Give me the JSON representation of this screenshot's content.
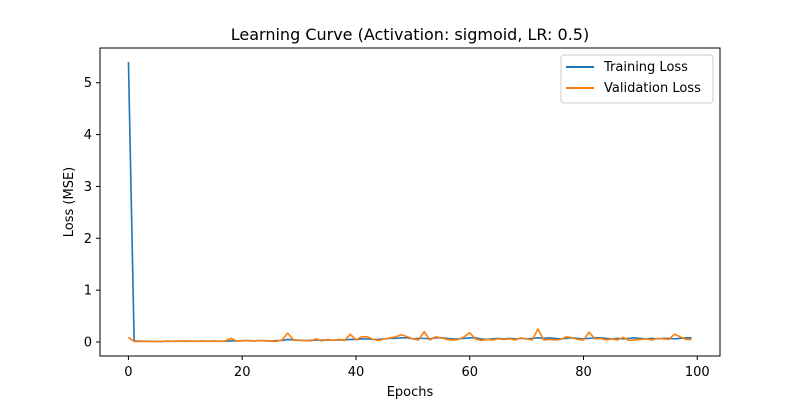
{
  "chart_data": {
    "type": "line",
    "title": "Learning Curve (Activation: sigmoid, LR: 0.5)",
    "xlabel": "Epochs",
    "ylabel": "Loss (MSE)",
    "xlim": [
      -5,
      104
    ],
    "ylim": [
      -0.27,
      5.67
    ],
    "xticks": [
      0,
      20,
      40,
      60,
      80,
      100
    ],
    "yticks": [
      0,
      1,
      2,
      3,
      4,
      5
    ],
    "grid": false,
    "legend_position": "top-right",
    "series": [
      {
        "name": "Training Loss",
        "color": "#1f77b4",
        "values": [
          5.4,
          0.02,
          0.015,
          0.015,
          0.012,
          0.012,
          0.012,
          0.012,
          0.015,
          0.015,
          0.018,
          0.015,
          0.015,
          0.015,
          0.015,
          0.015,
          0.015,
          0.015,
          0.02,
          0.02,
          0.025,
          0.025,
          0.02,
          0.025,
          0.025,
          0.02,
          0.025,
          0.03,
          0.05,
          0.04,
          0.035,
          0.03,
          0.03,
          0.04,
          0.035,
          0.04,
          0.035,
          0.04,
          0.04,
          0.05,
          0.05,
          0.06,
          0.06,
          0.05,
          0.05,
          0.06,
          0.07,
          0.07,
          0.08,
          0.08,
          0.06,
          0.07,
          0.07,
          0.06,
          0.08,
          0.08,
          0.07,
          0.06,
          0.06,
          0.07,
          0.08,
          0.08,
          0.06,
          0.05,
          0.06,
          0.07,
          0.06,
          0.07,
          0.06,
          0.07,
          0.06,
          0.07,
          0.08,
          0.07,
          0.08,
          0.07,
          0.06,
          0.07,
          0.08,
          0.07,
          0.06,
          0.07,
          0.08,
          0.08,
          0.07,
          0.06,
          0.07,
          0.06,
          0.07,
          0.08,
          0.07,
          0.06,
          0.07,
          0.06,
          0.07,
          0.07,
          0.06,
          0.07,
          0.08,
          0.08
        ]
      },
      {
        "name": "Validation Loss",
        "color": "#ff7f0e",
        "values": [
          0.09,
          0.01,
          0.01,
          0.01,
          0.01,
          0.01,
          0.01,
          0.02,
          0.01,
          0.02,
          0.01,
          0.02,
          0.01,
          0.02,
          0.01,
          0.02,
          0.01,
          0.02,
          0.07,
          0.02,
          0.02,
          0.03,
          0.02,
          0.03,
          0.02,
          0.02,
          0.01,
          0.04,
          0.17,
          0.04,
          0.03,
          0.03,
          0.02,
          0.06,
          0.02,
          0.05,
          0.03,
          0.05,
          0.03,
          0.15,
          0.04,
          0.1,
          0.1,
          0.05,
          0.03,
          0.06,
          0.08,
          0.1,
          0.14,
          0.1,
          0.06,
          0.04,
          0.2,
          0.04,
          0.1,
          0.08,
          0.05,
          0.04,
          0.05,
          0.1,
          0.18,
          0.06,
          0.03,
          0.05,
          0.04,
          0.06,
          0.05,
          0.06,
          0.04,
          0.08,
          0.06,
          0.04,
          0.25,
          0.04,
          0.05,
          0.04,
          0.05,
          0.1,
          0.08,
          0.05,
          0.04,
          0.19,
          0.06,
          0.07,
          0.04,
          0.06,
          0.04,
          0.09,
          0.03,
          0.04,
          0.05,
          0.06,
          0.04,
          0.07,
          0.06,
          0.05,
          0.15,
          0.1,
          0.05,
          0.05
        ]
      }
    ]
  }
}
